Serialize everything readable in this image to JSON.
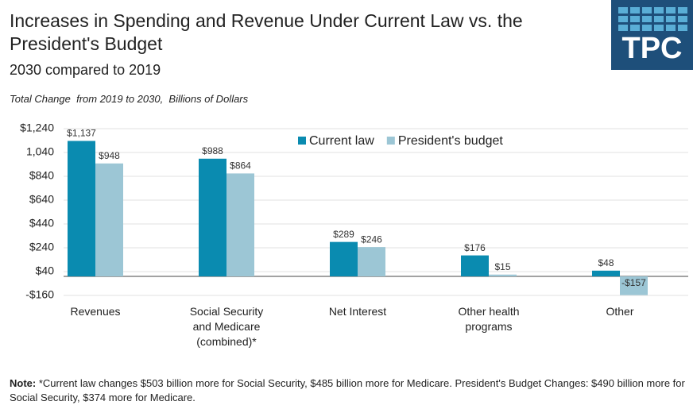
{
  "chart_data": {
    "type": "bar",
    "title": "Increases in Spending and Revenue Under Current Law vs. the President's Budget",
    "subtitle": "2030 compared to 2019",
    "axis_label": "Total Change  from 2019 to 2030,  Billions of Dollars",
    "logo": "TPC",
    "categories": [
      "Revenues",
      "Social Security and Medicare (combined)*",
      "Net Interest",
      "Other health programs",
      "Other"
    ],
    "series": [
      {
        "name": "Current law",
        "color": "#0a8bb0",
        "values": [
          1137,
          988,
          289,
          176,
          48
        ],
        "value_labels": [
          "$1,137",
          "$988",
          "$289",
          "$176",
          "$48"
        ]
      },
      {
        "name": "President's budget",
        "color": "#9cc6d5",
        "values": [
          948,
          864,
          246,
          15,
          -157
        ],
        "value_labels": [
          "$948",
          "$864",
          "$246",
          "$15",
          "-$157"
        ]
      }
    ],
    "ylim": [
      -160,
      1240
    ],
    "yticks": [
      {
        "value": -160,
        "label": "-$160"
      },
      {
        "value": 40,
        "label": "$40"
      },
      {
        "value": 240,
        "label": "$240"
      },
      {
        "value": 440,
        "label": "$440"
      },
      {
        "value": 640,
        "label": "$640"
      },
      {
        "value": 840,
        "label": "$840"
      },
      {
        "value": 1040,
        "label": "1,040"
      },
      {
        "value": 1240,
        "label": "$1,240"
      }
    ],
    "grid": true,
    "note": {
      "label": "Note:",
      "text": " *Current law changes $503 billion more for Social Security, $485 billion  more for Medicare. President's Budget Changes: $490 billion more for Social Security, $374 more for Medicare."
    }
  }
}
